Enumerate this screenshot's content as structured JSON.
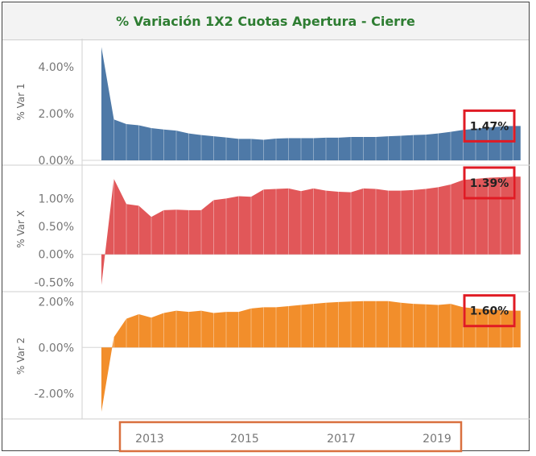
{
  "chart_data": {
    "type": "area",
    "title": "% Variación 1X2 Cuotas Apertura - Cierre",
    "x": [
      "2012-01",
      "2012-04",
      "2012-07",
      "2012-10",
      "2013-01",
      "2013-04",
      "2013-07",
      "2013-10",
      "2014-01",
      "2014-04",
      "2014-07",
      "2014-10",
      "2015-01",
      "2015-04",
      "2015-07",
      "2015-10",
      "2016-01",
      "2016-04",
      "2016-07",
      "2016-10",
      "2017-01",
      "2017-04",
      "2017-07",
      "2017-10",
      "2018-01",
      "2018-04",
      "2018-07",
      "2018-10",
      "2019-01",
      "2019-04",
      "2019-07",
      "2019-10",
      "2020-01",
      "2020-04"
    ],
    "x_ticks": [
      "2013",
      "2015",
      "2017",
      "2019"
    ],
    "series": [
      {
        "name": "% Var 1",
        "color": "#4e79a7",
        "y_ticks": [
          "4.00%",
          "2.00%",
          "0.00%"
        ],
        "ylim": [
          0,
          5
        ],
        "highlight": "1.47%",
        "values": [
          4.85,
          1.75,
          1.55,
          1.5,
          1.38,
          1.32,
          1.27,
          1.15,
          1.08,
          1.03,
          0.98,
          0.92,
          0.92,
          0.88,
          0.93,
          0.95,
          0.95,
          0.95,
          0.97,
          0.97,
          1.0,
          1.0,
          1.0,
          1.03,
          1.05,
          1.08,
          1.1,
          1.15,
          1.22,
          1.3,
          1.35,
          1.4,
          1.45,
          1.47
        ]
      },
      {
        "name": "% Var X",
        "color": "#e15759",
        "y_ticks": [
          "1.00%",
          "0.50%",
          "0.00%",
          "-0.50%"
        ],
        "ylim": [
          -0.58,
          1.48
        ],
        "highlight": "1.39%",
        "values": [
          -0.55,
          1.35,
          0.9,
          0.87,
          0.67,
          0.79,
          0.8,
          0.79,
          0.79,
          0.97,
          1.0,
          1.04,
          1.03,
          1.16,
          1.17,
          1.18,
          1.13,
          1.18,
          1.14,
          1.12,
          1.11,
          1.18,
          1.17,
          1.14,
          1.14,
          1.15,
          1.17,
          1.2,
          1.25,
          1.33,
          1.35,
          1.37,
          1.38,
          1.39
        ]
      },
      {
        "name": "% Var 2",
        "color": "#f28e2b",
        "y_ticks": [
          "2.00%",
          "0.00%",
          "-2.00%"
        ],
        "ylim": [
          -2.9,
          2.15
        ],
        "highlight": "1.60%",
        "values": [
          -2.8,
          0.45,
          1.25,
          1.45,
          1.3,
          1.5,
          1.6,
          1.55,
          1.6,
          1.5,
          1.55,
          1.55,
          1.7,
          1.75,
          1.75,
          1.8,
          1.85,
          1.9,
          1.95,
          1.98,
          2.0,
          2.02,
          2.02,
          2.02,
          1.95,
          1.9,
          1.88,
          1.85,
          1.9,
          1.75,
          1.7,
          1.65,
          1.62,
          1.6
        ]
      }
    ]
  }
}
